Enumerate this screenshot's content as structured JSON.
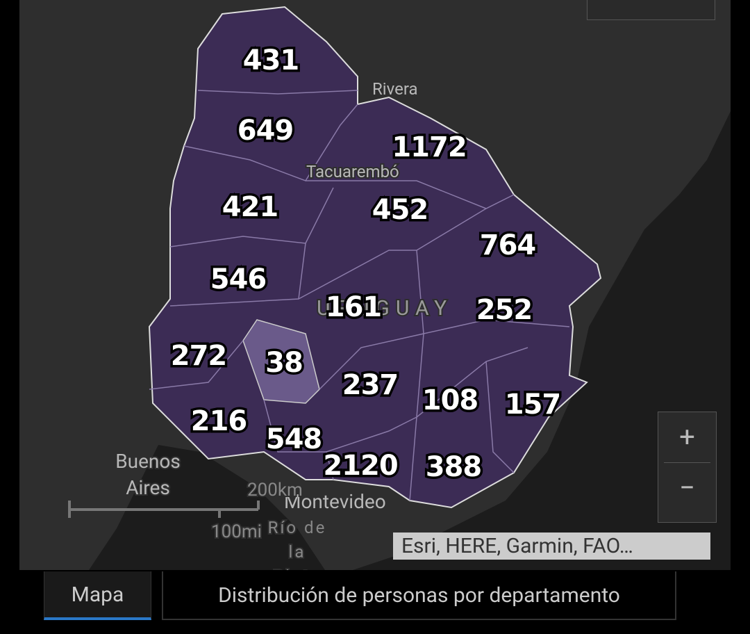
{
  "map": {
    "counts": [
      431,
      649,
      1172,
      421,
      452,
      764,
      546,
      161,
      252,
      272,
      38,
      237,
      108,
      157,
      216,
      548,
      2120,
      388
    ],
    "places": {
      "rivera": "Rivera",
      "tacuarembo": "Tacuarembó",
      "country": "URUGUAY",
      "buenos_aires": "Buenos Aires",
      "montevideo": "Montevideo",
      "rio": "Río de la Plata"
    },
    "scale": {
      "metric": "200km",
      "imperial": "100mi"
    },
    "attribution": "Esri, HERE, Garmin, FAO…",
    "zoom": {
      "in": "+",
      "out": "−"
    }
  },
  "tabs": [
    "Mapa",
    "Distribución de personas por departamento"
  ]
}
